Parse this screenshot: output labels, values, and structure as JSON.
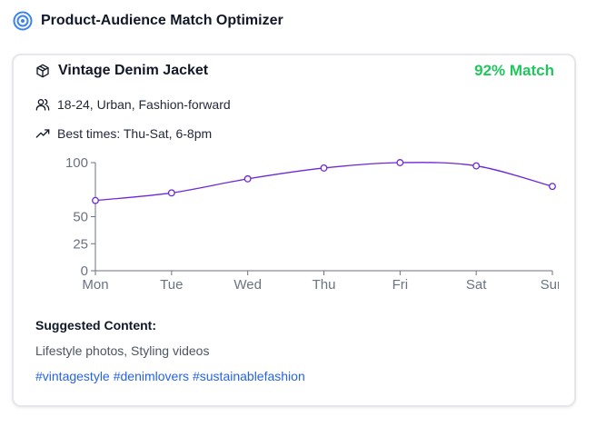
{
  "header": {
    "title": "Product-Audience Match Optimizer",
    "icon": "target-icon",
    "accent": "#3b82f6"
  },
  "product": {
    "name": "Vintage Denim Jacket",
    "icon": "package-icon",
    "match": "92% Match",
    "match_color": "#22c55e"
  },
  "audience": {
    "icon": "users-icon",
    "text": "18-24, Urban, Fashion-forward"
  },
  "best_times": {
    "icon": "trending-up-icon",
    "text": "Best times: Thu-Sat, 6-8pm"
  },
  "chart_data": {
    "type": "line",
    "categories": [
      "Mon",
      "Tue",
      "Wed",
      "Thu",
      "Fri",
      "Sat",
      "Sun"
    ],
    "series": [
      {
        "values": [
          65,
          72,
          85,
          95,
          100,
          97,
          78
        ],
        "color": "#6d28d9"
      }
    ],
    "yticks": [
      0,
      25,
      50,
      100
    ],
    "ylim": [
      0,
      100
    ],
    "title": "",
    "xlabel": "",
    "ylabel": ""
  },
  "content": {
    "title": "Suggested Content:",
    "suggestions": "Lifestyle photos, Styling videos",
    "hashtags": [
      "#vintagestyle",
      "#denimlovers",
      "#sustainablefashion"
    ],
    "hashtag_color": "#2563eb"
  }
}
